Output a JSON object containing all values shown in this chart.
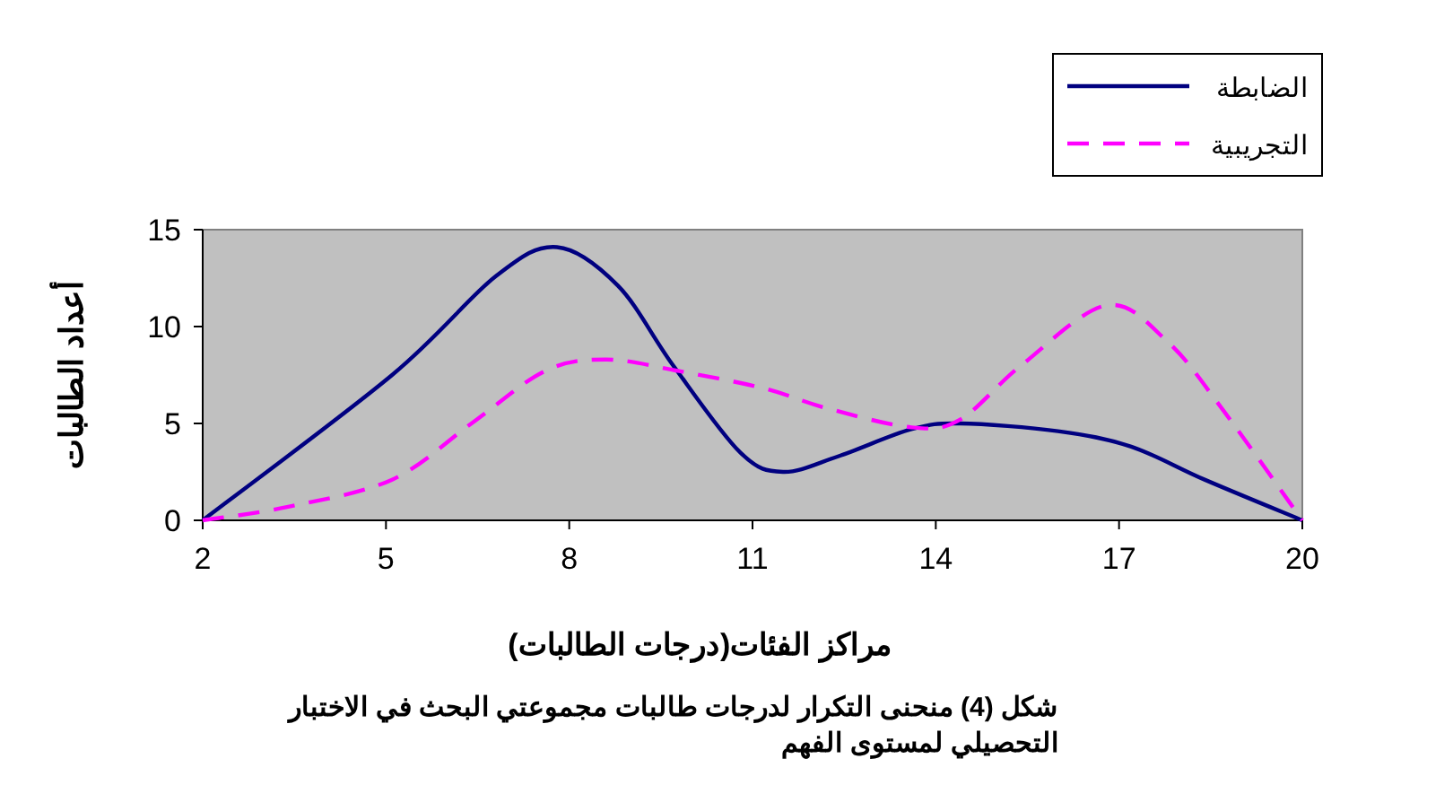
{
  "chart_data": {
    "type": "line",
    "xlabel": "مراكز الفئات(درجات الطالبات)",
    "ylabel": "أعداد الطالبات",
    "annotations": [
      "شكل (4) منحنى التكرار لدرجات طالبات مجموعتي البحث في الاختبار التحصيلي لمستوى الفهم"
    ],
    "xlim": [
      2,
      20
    ],
    "ylim": [
      0,
      15
    ],
    "xticks": [
      2,
      5,
      8,
      11,
      14,
      17,
      20
    ],
    "yticks": [
      0,
      5,
      10,
      15
    ],
    "legend": "top right",
    "grid": false,
    "series": [
      {
        "name": "الضابطة",
        "color": "#000080",
        "line_style": "solid",
        "x": [
          2,
          5.1,
          6.8,
          7.8,
          8.8,
          9.7,
          10.8,
          11.5,
          12.4,
          13.6,
          14.4,
          16,
          17.2,
          18.4,
          20
        ],
        "values": [
          0,
          7.5,
          12.6,
          14.1,
          12.1,
          8,
          3.5,
          2.5,
          3.3,
          4.7,
          5,
          4.6,
          3.8,
          2.1,
          0
        ]
      },
      {
        "name": "التجريبية",
        "color": "#ff00ff",
        "line_style": "dashed",
        "x": [
          2,
          3.4,
          5.1,
          6.4,
          7.6,
          8.6,
          9.8,
          11.2,
          12.2,
          13.6,
          14.4,
          15.4,
          16.8,
          17.8,
          18.7,
          20
        ],
        "values": [
          0,
          0.7,
          2.1,
          5,
          7.7,
          8.3,
          7.7,
          6.8,
          5.8,
          4.8,
          5.2,
          8,
          11.1,
          9.2,
          5.7,
          0
        ]
      }
    ]
  }
}
